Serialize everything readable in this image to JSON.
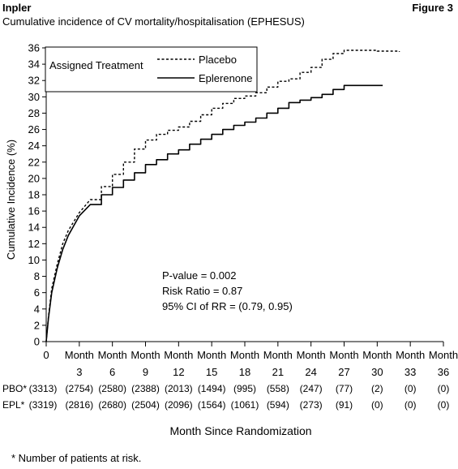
{
  "header": {
    "left": "Inpler",
    "right": "Figure 3",
    "subtitle": "Cumulative incidence of CV mortality/hospitalisation (EPHESUS)"
  },
  "footnote": "* Number of patients at risk.",
  "chart_data": {
    "type": "line",
    "ylabel": "Cumulative Incidence (%)",
    "xlabel": "Month Since Randomization",
    "xlim": [
      0,
      36
    ],
    "ylim": [
      0,
      36
    ],
    "y_ticks": [
      "0",
      "2",
      "4",
      "6",
      "8",
      "10",
      "12",
      "14",
      "16",
      "18",
      "20",
      "22",
      "24",
      "26",
      "28",
      "30",
      "32",
      "34",
      "36"
    ],
    "x_tick_month_word": "Month",
    "x_ticks": [
      "0",
      "3",
      "6",
      "9",
      "12",
      "15",
      "18",
      "21",
      "24",
      "27",
      "30",
      "33",
      "36"
    ],
    "legend": {
      "title": "Assigned Treatment",
      "placement": "top-left"
    },
    "series": [
      {
        "name": "Placebo",
        "dash": true,
        "color": "#000000",
        "points": [
          [
            0,
            0
          ],
          [
            0.2,
            3
          ],
          [
            0.5,
            6.5
          ],
          [
            1,
            9.5
          ],
          [
            1.5,
            12
          ],
          [
            2,
            13.6
          ],
          [
            3,
            15.8
          ],
          [
            4,
            17.4
          ],
          [
            5,
            19
          ],
          [
            6,
            20.5
          ],
          [
            7,
            22
          ],
          [
            8,
            23.6
          ],
          [
            9,
            24.7
          ],
          [
            10,
            25.4
          ],
          [
            11,
            25.9
          ],
          [
            12,
            26.3
          ],
          [
            13,
            27
          ],
          [
            14,
            27.8
          ],
          [
            15,
            28.6
          ],
          [
            16,
            29.2
          ],
          [
            17,
            29.8
          ],
          [
            18,
            30.1
          ],
          [
            19,
            30.5
          ],
          [
            20,
            31.2
          ],
          [
            21,
            31.9
          ],
          [
            22,
            32.2
          ],
          [
            23,
            33
          ],
          [
            24,
            33.6
          ],
          [
            25,
            34.6
          ],
          [
            26,
            35.3
          ],
          [
            27,
            35.7
          ],
          [
            28,
            35.7
          ],
          [
            29,
            35.7
          ],
          [
            30,
            35.6
          ],
          [
            31,
            35.6
          ],
          [
            32,
            35.5
          ]
        ]
      },
      {
        "name": "Eplerenone",
        "dash": false,
        "color": "#000000",
        "points": [
          [
            0,
            0
          ],
          [
            0.2,
            2.8
          ],
          [
            0.5,
            6
          ],
          [
            1,
            9
          ],
          [
            1.5,
            11.3
          ],
          [
            2,
            13
          ],
          [
            3,
            15.4
          ],
          [
            4,
            16.8
          ],
          [
            5,
            18
          ],
          [
            6,
            18.9
          ],
          [
            7,
            19.8
          ],
          [
            8,
            20.7
          ],
          [
            9,
            21.7
          ],
          [
            10,
            22.3
          ],
          [
            11,
            23
          ],
          [
            12,
            23.5
          ],
          [
            13,
            24.2
          ],
          [
            14,
            24.8
          ],
          [
            15,
            25.4
          ],
          [
            16,
            26
          ],
          [
            17,
            26.5
          ],
          [
            18,
            26.9
          ],
          [
            19,
            27.4
          ],
          [
            20,
            28
          ],
          [
            21,
            28.6
          ],
          [
            22,
            29.3
          ],
          [
            23,
            29.6
          ],
          [
            24,
            29.9
          ],
          [
            25,
            30.3
          ],
          [
            26,
            30.9
          ],
          [
            27,
            31.4
          ],
          [
            28,
            31.4
          ],
          [
            29,
            31.4
          ],
          [
            30,
            31.4
          ],
          [
            30.5,
            31.4
          ]
        ]
      }
    ],
    "annotations": [
      "P-value = 0.002",
      "Risk Ratio = 0.87",
      "95% CI of RR = (0.79, 0.95)"
    ],
    "risk_table": [
      {
        "label": "PBO*",
        "values": [
          "(3313)",
          "(2754)",
          "(2580)",
          "(2388)",
          "(2013)",
          "(1494)",
          "(995)",
          "(558)",
          "(247)",
          "(77)",
          "(2)",
          "(0)",
          "(0)"
        ]
      },
      {
        "label": "EPL*",
        "values": [
          "(3319)",
          "(2816)",
          "(2680)",
          "(2504)",
          "(2096)",
          "(1564)",
          "(1061)",
          "(594)",
          "(273)",
          "(91)",
          "(0)",
          "(0)",
          "(0)"
        ]
      }
    ]
  }
}
